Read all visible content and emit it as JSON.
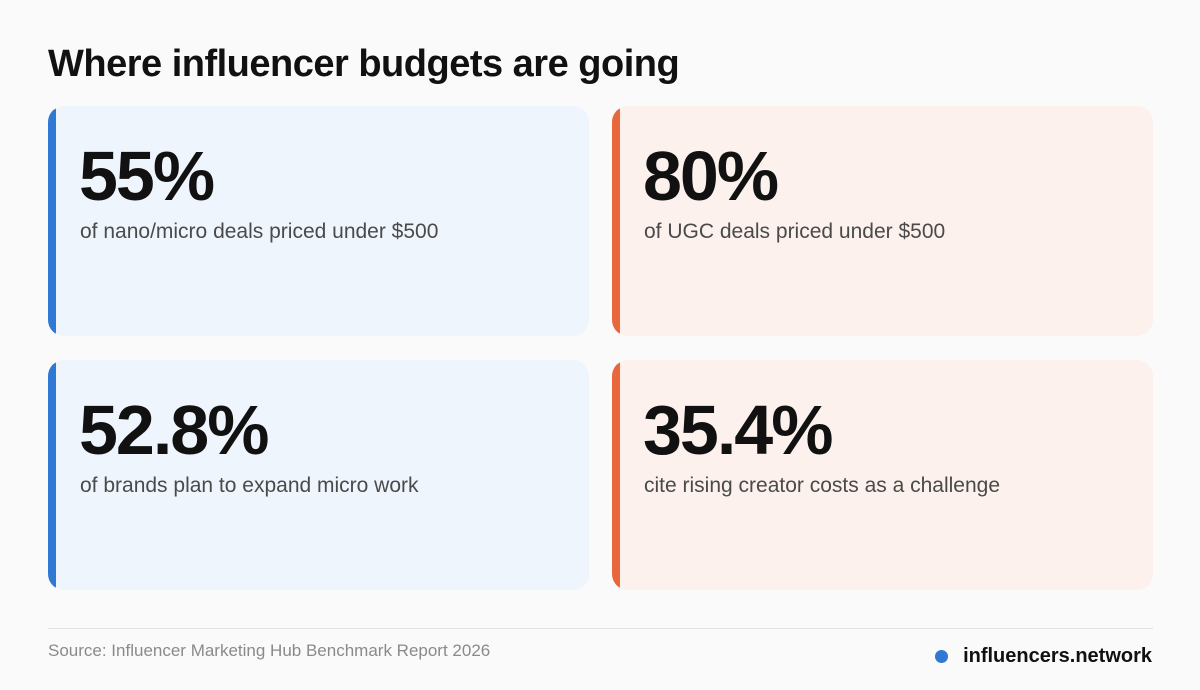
{
  "title": "Where influencer budgets are going",
  "cards": [
    {
      "stat": "55%",
      "description": "of nano/micro deals priced under $500",
      "accent": "#2f78d4",
      "background": "#eff5fd"
    },
    {
      "stat": "80%",
      "description": "of UGC deals priced under $500",
      "accent": "#e8673c",
      "background": "#fcf1ec"
    },
    {
      "stat": "52.8%",
      "description": "of brands plan to expand micro work",
      "accent": "#2f78d4",
      "background": "#eff5fd"
    },
    {
      "stat": "35.4%",
      "description": "cite rising creator costs as a challenge",
      "accent": "#e8673c",
      "background": "#fcf1ec"
    }
  ],
  "footer": {
    "source": "Source: Influencer Marketing Hub Benchmark Report 2026",
    "brand": "influencers.network",
    "brand_dot_color": "#2f78d4"
  }
}
